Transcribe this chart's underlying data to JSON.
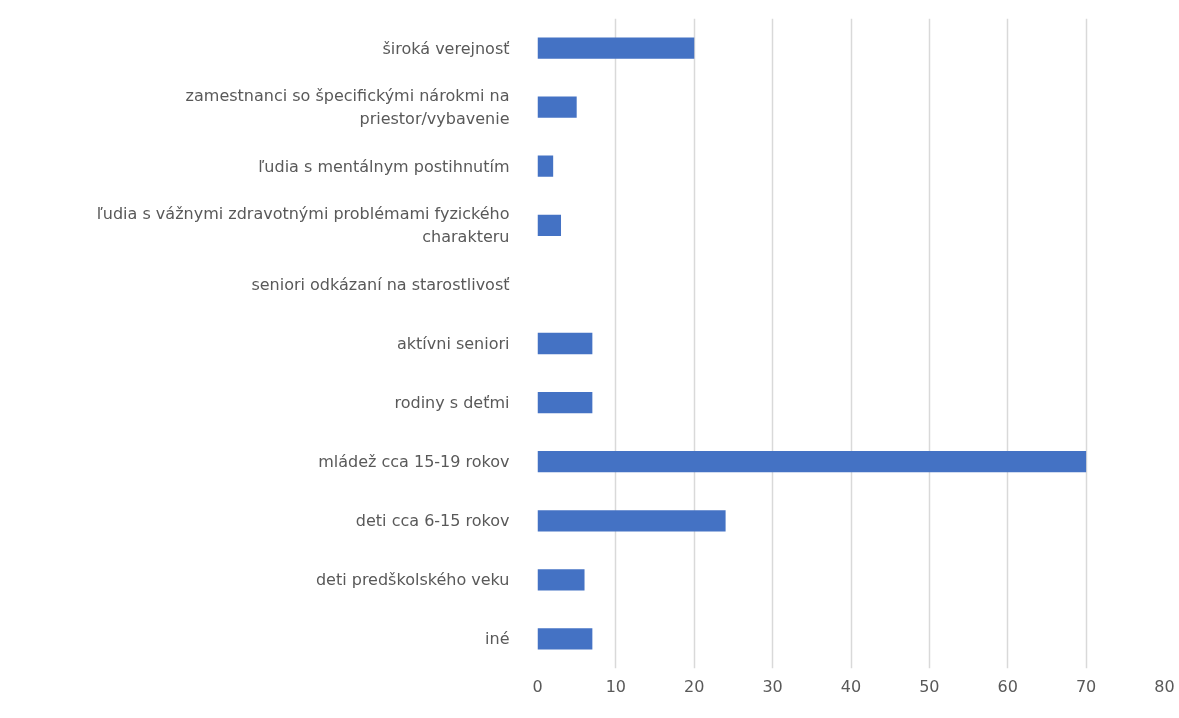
{
  "chart_data": {
    "type": "bar",
    "orientation": "horizontal",
    "categories": [
      "široká verejnosť",
      "zamestnanci so špecifickými nárokmi na priestor/vybavenie",
      "ľudia s mentálnym postihnutím",
      "ľudia s vážnymi zdravotnými problémami fyzického charakteru",
      "seniori odkázaní na starostlivosť",
      "aktívni seniori",
      "rodiny s deťmi",
      "mládež cca 15-19 rokov",
      "deti cca 6-15 rokov",
      "deti predškolského veku",
      "iné"
    ],
    "values": [
      20,
      5,
      2,
      3,
      0,
      7,
      7,
      70,
      24,
      6,
      7
    ],
    "color": "#4472c4",
    "xlim": [
      0,
      80
    ],
    "xticks": [
      0,
      10,
      20,
      30,
      40,
      50,
      60,
      70,
      80
    ],
    "grid": "x"
  }
}
